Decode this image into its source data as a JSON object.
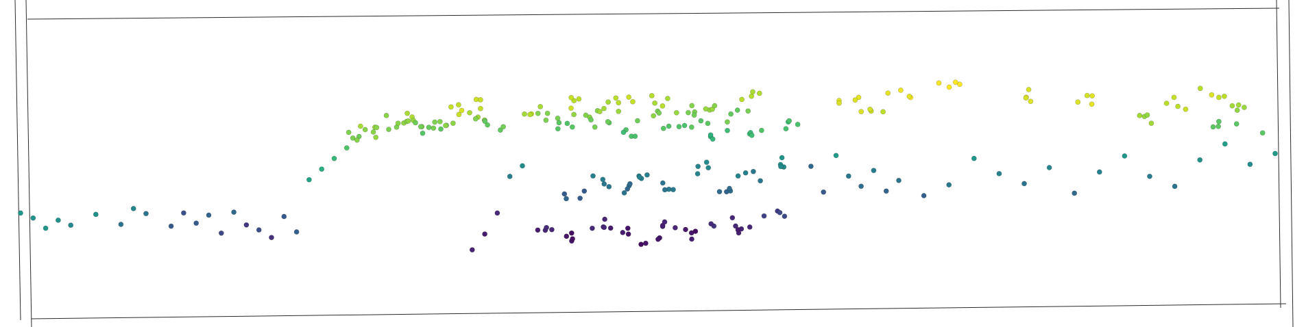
{
  "chart_data": {
    "type": "scatter",
    "projection": "3d",
    "title": "",
    "xlabel": "",
    "ylabel": "",
    "zlabel": "",
    "axes_visible": false,
    "grid": false,
    "legend": "none",
    "colormap": "viridis",
    "color_encodes": "z",
    "colors": {
      "low": "#440154",
      "mid_low": "#31688e",
      "mid": "#21918c",
      "mid_high": "#35b779",
      "high": "#fde725"
    },
    "series": [
      {
        "points": [
          [
            0.0,
            0.47,
            0.52
          ],
          [
            0.01,
            0.45,
            0.5
          ],
          [
            0.02,
            0.41,
            0.52
          ],
          [
            0.03,
            0.44,
            0.5
          ],
          [
            0.04,
            0.42,
            0.46
          ],
          [
            0.06,
            0.46,
            0.5
          ],
          [
            0.08,
            0.42,
            0.38
          ],
          [
            0.09,
            0.48,
            0.46
          ],
          [
            0.1,
            0.46,
            0.38
          ],
          [
            0.12,
            0.41,
            0.28
          ],
          [
            0.13,
            0.46,
            0.25
          ],
          [
            0.14,
            0.42,
            0.28
          ],
          [
            0.15,
            0.45,
            0.32
          ],
          [
            0.16,
            0.38,
            0.22
          ],
          [
            0.17,
            0.46,
            0.34
          ],
          [
            0.18,
            0.41,
            0.16
          ],
          [
            0.19,
            0.39,
            0.24
          ],
          [
            0.2,
            0.36,
            0.14
          ],
          [
            0.21,
            0.44,
            0.28
          ],
          [
            0.22,
            0.38,
            0.3
          ],
          [
            0.23,
            0.58,
            0.58
          ],
          [
            0.24,
            0.62,
            0.62
          ],
          [
            0.25,
            0.66,
            0.66
          ],
          [
            0.26,
            0.7,
            0.72
          ],
          [
            0.27,
            0.74,
            0.8
          ],
          [
            0.28,
            0.76,
            0.84
          ],
          [
            0.29,
            0.78,
            0.82
          ],
          [
            0.3,
            0.8,
            0.84
          ],
          [
            0.31,
            0.82,
            0.86
          ],
          [
            0.32,
            0.78,
            0.8
          ],
          [
            0.33,
            0.76,
            0.74
          ],
          [
            0.34,
            0.8,
            0.8
          ],
          [
            0.35,
            0.84,
            0.9
          ],
          [
            0.36,
            0.86,
            0.94
          ],
          [
            0.37,
            0.82,
            0.84
          ],
          [
            0.38,
            0.78,
            0.76
          ],
          [
            0.36,
            0.3,
            0.1
          ],
          [
            0.37,
            0.36,
            0.08
          ],
          [
            0.38,
            0.44,
            0.12
          ],
          [
            0.39,
            0.58,
            0.42
          ],
          [
            0.4,
            0.62,
            0.48
          ],
          [
            0.41,
            0.84,
            0.88
          ],
          [
            0.42,
            0.8,
            0.8
          ],
          [
            0.43,
            0.76,
            0.72
          ],
          [
            0.44,
            0.86,
            0.9
          ],
          [
            0.45,
            0.82,
            0.84
          ],
          [
            0.46,
            0.78,
            0.78
          ],
          [
            0.47,
            0.84,
            0.86
          ],
          [
            0.48,
            0.88,
            0.92
          ],
          [
            0.49,
            0.74,
            0.7
          ],
          [
            0.5,
            0.8,
            0.8
          ],
          [
            0.51,
            0.86,
            0.88
          ],
          [
            0.52,
            0.76,
            0.72
          ],
          [
            0.53,
            0.82,
            0.82
          ],
          [
            0.54,
            0.78,
            0.76
          ],
          [
            0.55,
            0.84,
            0.84
          ],
          [
            0.56,
            0.72,
            0.66
          ],
          [
            0.57,
            0.8,
            0.78
          ],
          [
            0.58,
            0.88,
            0.9
          ],
          [
            0.59,
            0.74,
            0.7
          ],
          [
            0.42,
            0.38,
            0.1
          ],
          [
            0.44,
            0.34,
            0.06
          ],
          [
            0.46,
            0.4,
            0.12
          ],
          [
            0.48,
            0.36,
            0.08
          ],
          [
            0.5,
            0.32,
            0.04
          ],
          [
            0.52,
            0.38,
            0.1
          ],
          [
            0.54,
            0.34,
            0.06
          ],
          [
            0.56,
            0.4,
            0.14
          ],
          [
            0.58,
            0.36,
            0.1
          ],
          [
            0.6,
            0.42,
            0.2
          ],
          [
            0.44,
            0.5,
            0.3
          ],
          [
            0.46,
            0.56,
            0.4
          ],
          [
            0.48,
            0.52,
            0.36
          ],
          [
            0.5,
            0.58,
            0.44
          ],
          [
            0.52,
            0.54,
            0.4
          ],
          [
            0.54,
            0.6,
            0.48
          ],
          [
            0.56,
            0.5,
            0.34
          ],
          [
            0.58,
            0.56,
            0.42
          ],
          [
            0.6,
            0.62,
            0.5
          ],
          [
            0.62,
            0.76,
            0.7
          ],
          [
            0.63,
            0.6,
            0.34
          ],
          [
            0.64,
            0.5,
            0.28
          ],
          [
            0.65,
            0.64,
            0.54
          ],
          [
            0.66,
            0.56,
            0.4
          ],
          [
            0.67,
            0.52,
            0.36
          ],
          [
            0.68,
            0.58,
            0.42
          ],
          [
            0.69,
            0.5,
            0.32
          ],
          [
            0.7,
            0.54,
            0.38
          ],
          [
            0.72,
            0.48,
            0.3
          ],
          [
            0.74,
            0.52,
            0.4
          ],
          [
            0.76,
            0.62,
            0.52
          ],
          [
            0.78,
            0.56,
            0.44
          ],
          [
            0.8,
            0.52,
            0.38
          ],
          [
            0.82,
            0.58,
            0.46
          ],
          [
            0.84,
            0.48,
            0.34
          ],
          [
            0.86,
            0.56,
            0.44
          ],
          [
            0.88,
            0.62,
            0.52
          ],
          [
            0.9,
            0.54,
            0.42
          ],
          [
            0.92,
            0.5,
            0.38
          ],
          [
            0.94,
            0.6,
            0.5
          ],
          [
            0.96,
            0.66,
            0.56
          ],
          [
            0.98,
            0.58,
            0.48
          ],
          [
            1.0,
            0.62,
            0.54
          ],
          [
            0.66,
            0.86,
            0.96
          ],
          [
            0.68,
            0.82,
            0.92
          ],
          [
            0.7,
            0.88,
            0.98
          ],
          [
            0.74,
            0.9,
            1.0
          ],
          [
            0.8,
            0.86,
            0.96
          ],
          [
            0.85,
            0.84,
            0.94
          ],
          [
            0.9,
            0.76,
            0.84
          ],
          [
            0.92,
            0.82,
            0.9
          ],
          [
            0.95,
            0.86,
            0.92
          ],
          [
            0.97,
            0.8,
            0.86
          ],
          [
            0.99,
            0.7,
            0.74
          ],
          [
            0.96,
            0.74,
            0.76
          ]
        ]
      }
    ]
  }
}
